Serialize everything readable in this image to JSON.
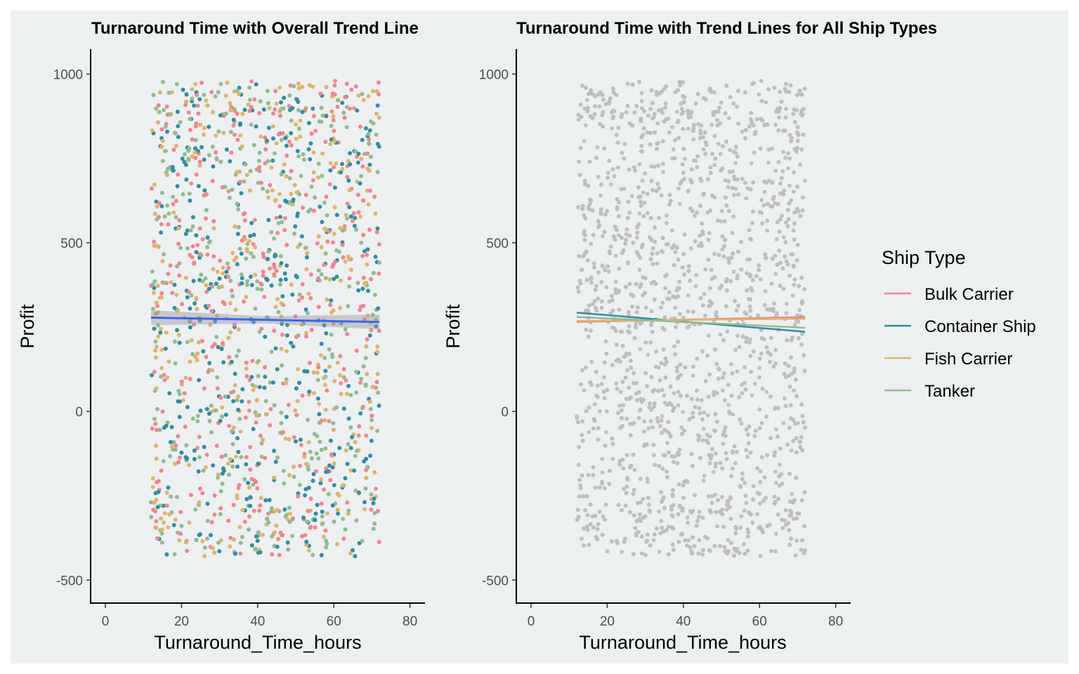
{
  "colors": {
    "background": "#edf0f1",
    "overall_trend": "#3366ff",
    "confidence_band": "#999999",
    "grey_points": "#bfbfbf",
    "Bulk Carrier": "#f4838f",
    "Container Ship": "#2a8fa4",
    "Fish Carrier": "#e0b466",
    "Tanker": "#8fbc8f"
  },
  "legend": {
    "title": "Ship Type",
    "items": [
      "Bulk Carrier",
      "Container Ship",
      "Fish Carrier",
      "Tanker"
    ]
  },
  "chart_data": [
    {
      "type": "scatter",
      "title": "Turnaround Time with Overall Trend Line",
      "xlabel": "Turnaround_Time_hours",
      "ylabel": "Profit",
      "xlim": [
        -4,
        84
      ],
      "ylim": [
        -570,
        1070
      ],
      "xticks": [
        0,
        20,
        40,
        60,
        80
      ],
      "yticks": [
        -500,
        0,
        500,
        1000
      ],
      "grid": false,
      "points": {
        "x_range": [
          12,
          72
        ],
        "y_range": [
          -430,
          980
        ],
        "count_approx": 1500,
        "colored_by": "Ship Type"
      },
      "trend": {
        "name": "Overall",
        "x": [
          12,
          72
        ],
        "y": [
          278,
          265
        ]
      }
    },
    {
      "type": "scatter",
      "title": "Turnaround Time with Trend Lines for All Ship Types",
      "xlabel": "Turnaround_Time_hours",
      "ylabel": "Profit",
      "xlim": [
        -4,
        84
      ],
      "ylim": [
        -570,
        1070
      ],
      "xticks": [
        0,
        20,
        40,
        60,
        80
      ],
      "yticks": [
        -500,
        0,
        500,
        1000
      ],
      "grid": false,
      "legend_position": "right",
      "points": {
        "x_range": [
          12,
          72
        ],
        "y_range": [
          -430,
          980
        ],
        "count_approx": 1500,
        "color": "grey"
      },
      "series": [
        {
          "name": "Bulk Carrier",
          "x": [
            12,
            72
          ],
          "y": [
            265,
            280
          ]
        },
        {
          "name": "Container Ship",
          "x": [
            12,
            72
          ],
          "y": [
            293,
            236
          ]
        },
        {
          "name": "Fish Carrier",
          "x": [
            12,
            72
          ],
          "y": [
            268,
            275
          ]
        },
        {
          "name": "Tanker",
          "x": [
            12,
            72
          ],
          "y": [
            280,
            248
          ]
        }
      ]
    }
  ]
}
